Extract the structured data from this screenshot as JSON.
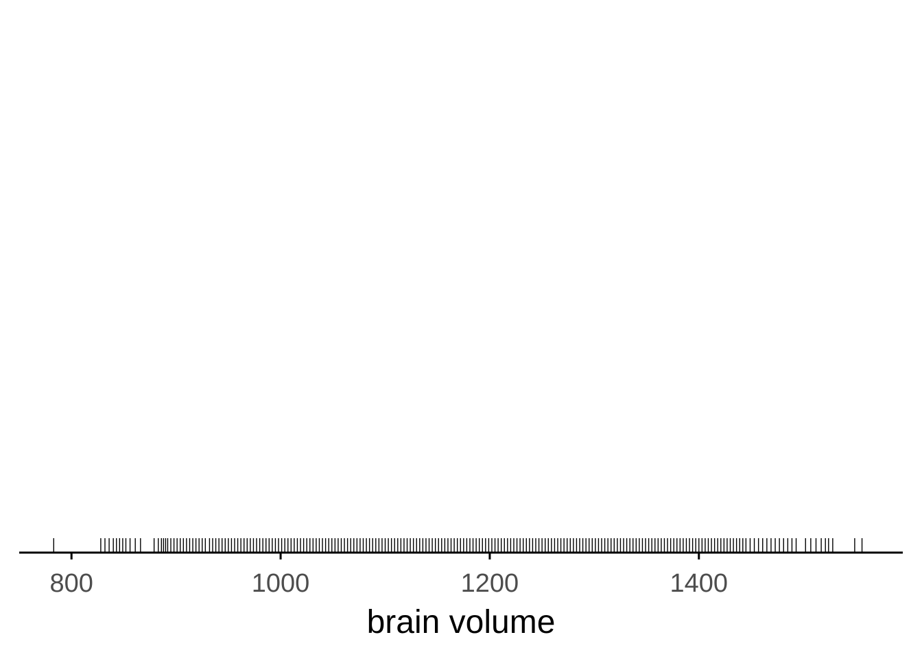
{
  "chart_data": {
    "type": "rug",
    "title": "",
    "xlabel": "brain volume",
    "ylabel": "",
    "xlim": [
      750,
      1595
    ],
    "x_ticks": [
      800,
      1000,
      1200,
      1400
    ],
    "tick_labels": [
      "800",
      "1000",
      "1200",
      "1400"
    ],
    "grid": false,
    "legend": "none",
    "values": [
      783,
      828,
      832,
      836,
      840,
      843,
      846,
      849,
      852,
      856,
      861,
      866,
      879,
      883,
      886,
      888,
      890,
      892,
      895,
      898,
      901,
      904,
      907,
      910,
      913,
      916,
      919,
      922,
      925,
      928,
      932,
      935,
      938,
      941,
      944,
      947,
      950,
      953,
      956,
      959,
      962,
      965,
      968,
      971,
      974,
      977,
      980,
      983,
      986,
      989,
      992,
      995,
      998,
      1001,
      1004,
      1007,
      1010,
      1013,
      1016,
      1019,
      1022,
      1025,
      1028,
      1031,
      1034,
      1037,
      1040,
      1043,
      1046,
      1049,
      1052,
      1055,
      1058,
      1061,
      1064,
      1067,
      1070,
      1073,
      1076,
      1079,
      1082,
      1085,
      1088,
      1091,
      1094,
      1097,
      1100,
      1103,
      1106,
      1109,
      1112,
      1115,
      1118,
      1121,
      1124,
      1127,
      1130,
      1133,
      1136,
      1139,
      1142,
      1145,
      1148,
      1151,
      1154,
      1157,
      1160,
      1163,
      1166,
      1169,
      1172,
      1175,
      1178,
      1181,
      1184,
      1187,
      1190,
      1193,
      1196,
      1199,
      1202,
      1205,
      1208,
      1211,
      1214,
      1217,
      1220,
      1223,
      1226,
      1229,
      1232,
      1235,
      1238,
      1241,
      1244,
      1247,
      1250,
      1253,
      1256,
      1259,
      1262,
      1265,
      1268,
      1271,
      1274,
      1277,
      1280,
      1283,
      1286,
      1289,
      1292,
      1295,
      1298,
      1301,
      1304,
      1307,
      1310,
      1313,
      1316,
      1319,
      1322,
      1325,
      1328,
      1331,
      1334,
      1337,
      1340,
      1343,
      1346,
      1349,
      1352,
      1355,
      1358,
      1361,
      1364,
      1367,
      1370,
      1373,
      1376,
      1379,
      1382,
      1385,
      1388,
      1391,
      1394,
      1397,
      1400,
      1403,
      1406,
      1409,
      1412,
      1415,
      1418,
      1421,
      1424,
      1427,
      1430,
      1433,
      1436,
      1439,
      1442,
      1445,
      1449,
      1453,
      1457,
      1461,
      1465,
      1469,
      1473,
      1477,
      1481,
      1485,
      1489,
      1493,
      1502,
      1507,
      1512,
      1517,
      1521,
      1524,
      1528,
      1549,
      1556
    ],
    "colors": {
      "rug": "#000000",
      "axis": "#000000",
      "tick_label": "#4d4d4d"
    }
  }
}
